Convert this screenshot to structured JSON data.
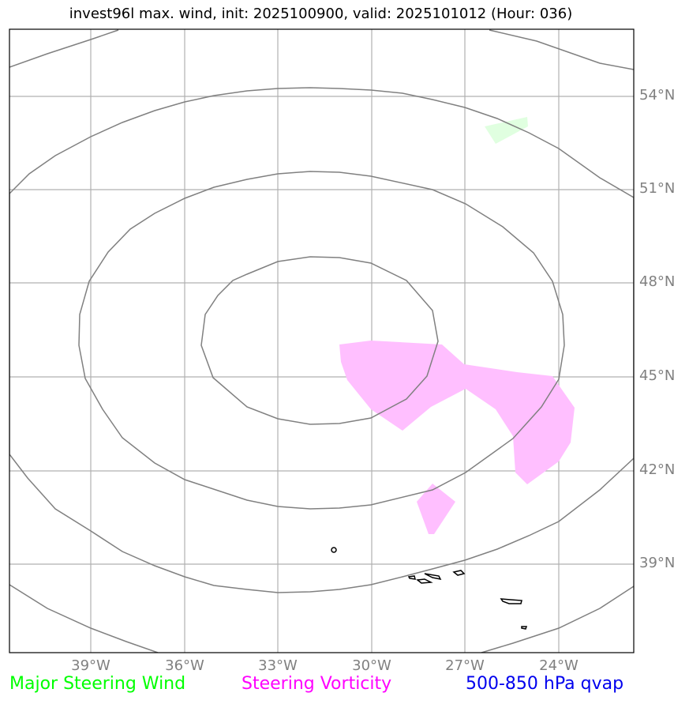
{
  "title": "invest96l max. wind, init: 2025100900, valid: 2025101012 (Hour: 036)",
  "lat_labels": [
    "54°N",
    "51°N",
    "48°N",
    "45°N",
    "42°N",
    "39°N"
  ],
  "lon_labels": [
    "39°W",
    "36°W",
    "33°W",
    "30°W",
    "27°W",
    "24°W"
  ],
  "legend": {
    "wind": {
      "label": "Major Steering Wind",
      "color": "#00ff00"
    },
    "vorticity": {
      "label": "Steering Vorticity",
      "color": "#ff00ff"
    },
    "qvap": {
      "label": "500-850 hPa qvap",
      "color": "#0000ee"
    }
  },
  "colors": {
    "contour": "#808080",
    "grid": "#b0b0b0",
    "vorticity_fill": "#ffbfff",
    "wind_fill": "#e0ffe0",
    "coastline": "#000000"
  }
}
